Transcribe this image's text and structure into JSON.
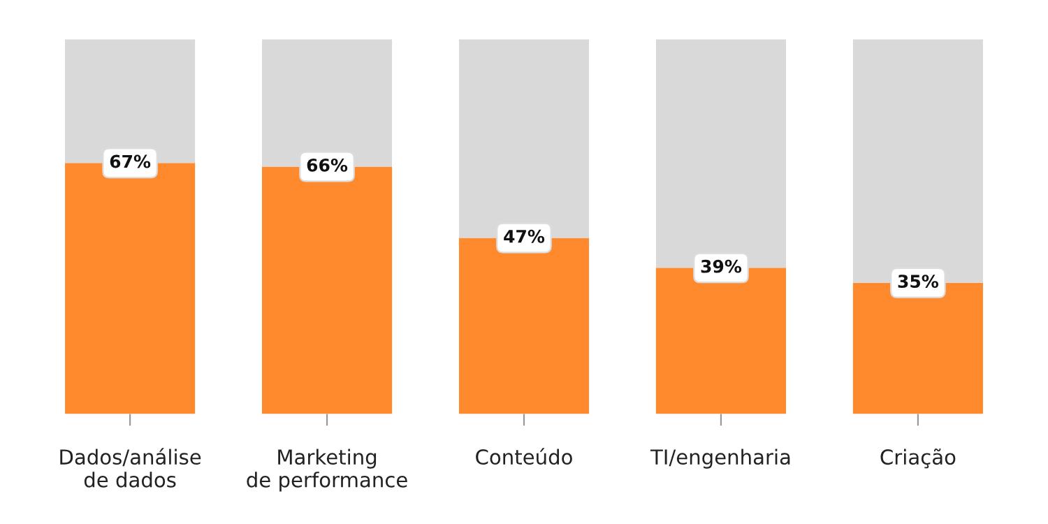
{
  "chart_data": {
    "type": "bar",
    "stacked": true,
    "categories": [
      "Dados/análise\nde dados",
      "Marketing\nde performance",
      "Conteúdo",
      "TI/engenharia",
      "Criação"
    ],
    "series": [
      {
        "color": "#ff8a2e",
        "values": [
          67,
          66,
          47,
          39,
          35
        ],
        "value_labels": [
          "67%",
          "66%",
          "47%",
          "39%",
          "35%"
        ]
      },
      {
        "color": "#d9d9d9",
        "values": [
          33,
          34,
          53,
          61,
          65
        ]
      }
    ],
    "ylim": [
      0,
      100
    ],
    "tick_labels": "x",
    "grid": false,
    "legend": false
  }
}
